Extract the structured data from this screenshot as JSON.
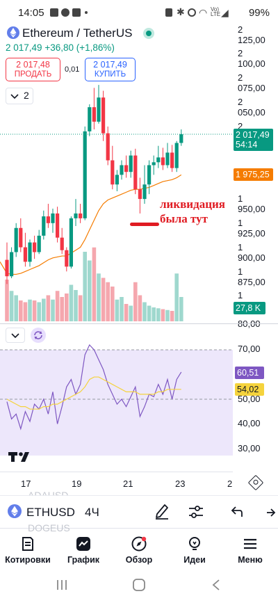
{
  "status_bar": {
    "time": "14:05",
    "battery": "99%"
  },
  "symbol": {
    "name": "Ethereum / TetherUS",
    "price": "2 017,49",
    "change": "+36,80",
    "change_pct": "(+1,86%)"
  },
  "trade": {
    "sell_price": "2 017,48",
    "sell_label": "ПРОДАТЬ",
    "spread": "0,01",
    "buy_price": "2 017,49",
    "buy_label": "КУПИТЬ"
  },
  "indicators_count": "2",
  "price_axis": {
    "ticks": [
      "2 125,00",
      "2 100,00",
      "2 075,00",
      "2 050,00",
      "2 025,00",
      "1 950,00",
      "1 925,00",
      "1 900,00",
      "1 875,00",
      "1 850,00",
      "80,00"
    ],
    "current_price_tag": "2 017,49",
    "countdown_tag": "54:14",
    "ma_tag": "1 975,25",
    "volume_tag": "27,8 K",
    "colors": {
      "up": "#089981",
      "down": "#f23645",
      "ma": "#f57c00",
      "volume_up": "#9fd8ce",
      "volume_down": "#f5a7ae"
    }
  },
  "annotation": {
    "line1": "ликвидация",
    "line2": "была тут",
    "color": "#e01b22"
  },
  "rsi_axis": {
    "ticks": [
      "70,00",
      "50,00",
      "40,00",
      "30,00"
    ],
    "rsi_tag": "60,51",
    "rsi_ma_tag": "54,02",
    "colors": {
      "rsi": "#7e57c2",
      "rsi_ma": "#f5d33d",
      "band": "#ede7fb"
    }
  },
  "time_axis": {
    "ticks": [
      "17",
      "19",
      "21",
      "23",
      "2"
    ]
  },
  "toolbar": {
    "symbol": "ETHUSD",
    "interval": "4Ч",
    "ghost_top": "ADAUSD",
    "ghost_bottom": "DOGEUS"
  },
  "bottom_nav": {
    "items": [
      {
        "label": "Котировки",
        "icon": "quotes-icon"
      },
      {
        "label": "График",
        "icon": "chart-icon"
      },
      {
        "label": "Обзор",
        "icon": "compass-icon"
      },
      {
        "label": "Идеи",
        "icon": "ideas-icon"
      },
      {
        "label": "Меню",
        "icon": "menu-icon"
      }
    ]
  },
  "chart_data": {
    "type": "candlestick",
    "title": "",
    "xlabel": "",
    "ylabel": "",
    "ylim": [
      1830,
      2130
    ],
    "x_ticks": [
      "17",
      "19",
      "21",
      "23",
      "2"
    ],
    "candles": [
      {
        "o": 1887,
        "h": 1905,
        "l": 1862,
        "c": 1870
      },
      {
        "o": 1870,
        "h": 1900,
        "l": 1868,
        "c": 1895
      },
      {
        "o": 1895,
        "h": 1925,
        "l": 1890,
        "c": 1920
      },
      {
        "o": 1920,
        "h": 1930,
        "l": 1895,
        "c": 1900
      },
      {
        "o": 1900,
        "h": 1915,
        "l": 1880,
        "c": 1885
      },
      {
        "o": 1885,
        "h": 1908,
        "l": 1880,
        "c": 1905
      },
      {
        "o": 1905,
        "h": 1912,
        "l": 1888,
        "c": 1895
      },
      {
        "o": 1895,
        "h": 1918,
        "l": 1893,
        "c": 1912
      },
      {
        "o": 1912,
        "h": 1938,
        "l": 1908,
        "c": 1932
      },
      {
        "o": 1932,
        "h": 1945,
        "l": 1920,
        "c": 1925
      },
      {
        "o": 1925,
        "h": 1940,
        "l": 1915,
        "c": 1935
      },
      {
        "o": 1935,
        "h": 1942,
        "l": 1905,
        "c": 1910
      },
      {
        "o": 1910,
        "h": 1920,
        "l": 1893,
        "c": 1897
      },
      {
        "o": 1897,
        "h": 1900,
        "l": 1875,
        "c": 1880
      },
      {
        "o": 1880,
        "h": 1932,
        "l": 1878,
        "c": 1930
      },
      {
        "o": 1930,
        "h": 1950,
        "l": 1922,
        "c": 1935
      },
      {
        "o": 1935,
        "h": 1945,
        "l": 1925,
        "c": 1930
      },
      {
        "o": 1930,
        "h": 2025,
        "l": 1928,
        "c": 2020
      },
      {
        "o": 2020,
        "h": 2048,
        "l": 2015,
        "c": 2045
      },
      {
        "o": 2045,
        "h": 2065,
        "l": 2022,
        "c": 2030
      },
      {
        "o": 2030,
        "h": 2068,
        "l": 2028,
        "c": 2055
      },
      {
        "o": 2055,
        "h": 2062,
        "l": 2010,
        "c": 2018
      },
      {
        "o": 2018,
        "h": 2025,
        "l": 1985,
        "c": 1990
      },
      {
        "o": 1990,
        "h": 2005,
        "l": 1960,
        "c": 1965
      },
      {
        "o": 1965,
        "h": 1980,
        "l": 1958,
        "c": 1975
      },
      {
        "o": 1975,
        "h": 1990,
        "l": 1970,
        "c": 1985
      },
      {
        "o": 1985,
        "h": 1995,
        "l": 1972,
        "c": 1978
      },
      {
        "o": 1978,
        "h": 2000,
        "l": 1972,
        "c": 1995
      },
      {
        "o": 1995,
        "h": 2002,
        "l": 1955,
        "c": 1960
      },
      {
        "o": 1960,
        "h": 1972,
        "l": 1935,
        "c": 1950
      },
      {
        "o": 1950,
        "h": 1985,
        "l": 1945,
        "c": 1965
      },
      {
        "o": 1965,
        "h": 1990,
        "l": 1955,
        "c": 1985
      },
      {
        "o": 1985,
        "h": 1995,
        "l": 1975,
        "c": 1988
      },
      {
        "o": 1988,
        "h": 2005,
        "l": 1982,
        "c": 1993
      },
      {
        "o": 1993,
        "h": 2003,
        "l": 1980,
        "c": 1985
      },
      {
        "o": 1985,
        "h": 2008,
        "l": 1982,
        "c": 1998
      },
      {
        "o": 1998,
        "h": 2006,
        "l": 1978,
        "c": 1982
      },
      {
        "o": 1982,
        "h": 2010,
        "l": 1978,
        "c": 2008
      },
      {
        "o": 2008,
        "h": 2022,
        "l": 2005,
        "c": 2017
      }
    ],
    "volume_k": [
      48,
      35,
      30,
      24,
      22,
      25,
      24,
      22,
      26,
      30,
      25,
      35,
      28,
      32,
      42,
      36,
      30,
      80,
      70,
      85,
      55,
      50,
      45,
      40,
      25,
      28,
      20,
      18,
      45,
      30,
      22,
      18,
      16,
      15,
      14,
      13,
      12,
      55,
      28
    ],
    "ma": [
      1873,
      1872,
      1872,
      1873,
      1875,
      1877,
      1879,
      1881,
      1884,
      1887,
      1889,
      1890,
      1891,
      1891,
      1894,
      1897,
      1900,
      1908,
      1918,
      1928,
      1938,
      1945,
      1949,
      1951,
      1953,
      1955,
      1957,
      1959,
      1960,
      1960,
      1961,
      1962,
      1964,
      1966,
      1968,
      1969,
      1970,
      1972,
      1975
    ],
    "rsi": [
      49,
      42,
      44,
      38,
      45,
      41,
      48,
      46,
      50,
      44,
      53,
      40,
      47,
      55,
      58,
      52,
      56,
      68,
      72,
      70,
      66,
      62,
      56,
      52,
      48,
      50,
      47,
      51,
      55,
      43,
      47,
      52,
      51,
      56,
      52,
      58,
      50,
      58,
      61
    ],
    "rsi_ma": [
      50,
      49,
      48,
      47,
      47,
      46,
      46,
      46,
      47,
      47,
      48,
      48,
      49,
      50,
      51,
      52,
      53,
      55,
      58,
      59,
      59,
      58,
      57,
      56,
      55,
      54,
      53,
      53,
      53,
      52,
      52,
      52,
      52,
      53,
      53,
      54,
      54,
      54,
      54
    ]
  }
}
